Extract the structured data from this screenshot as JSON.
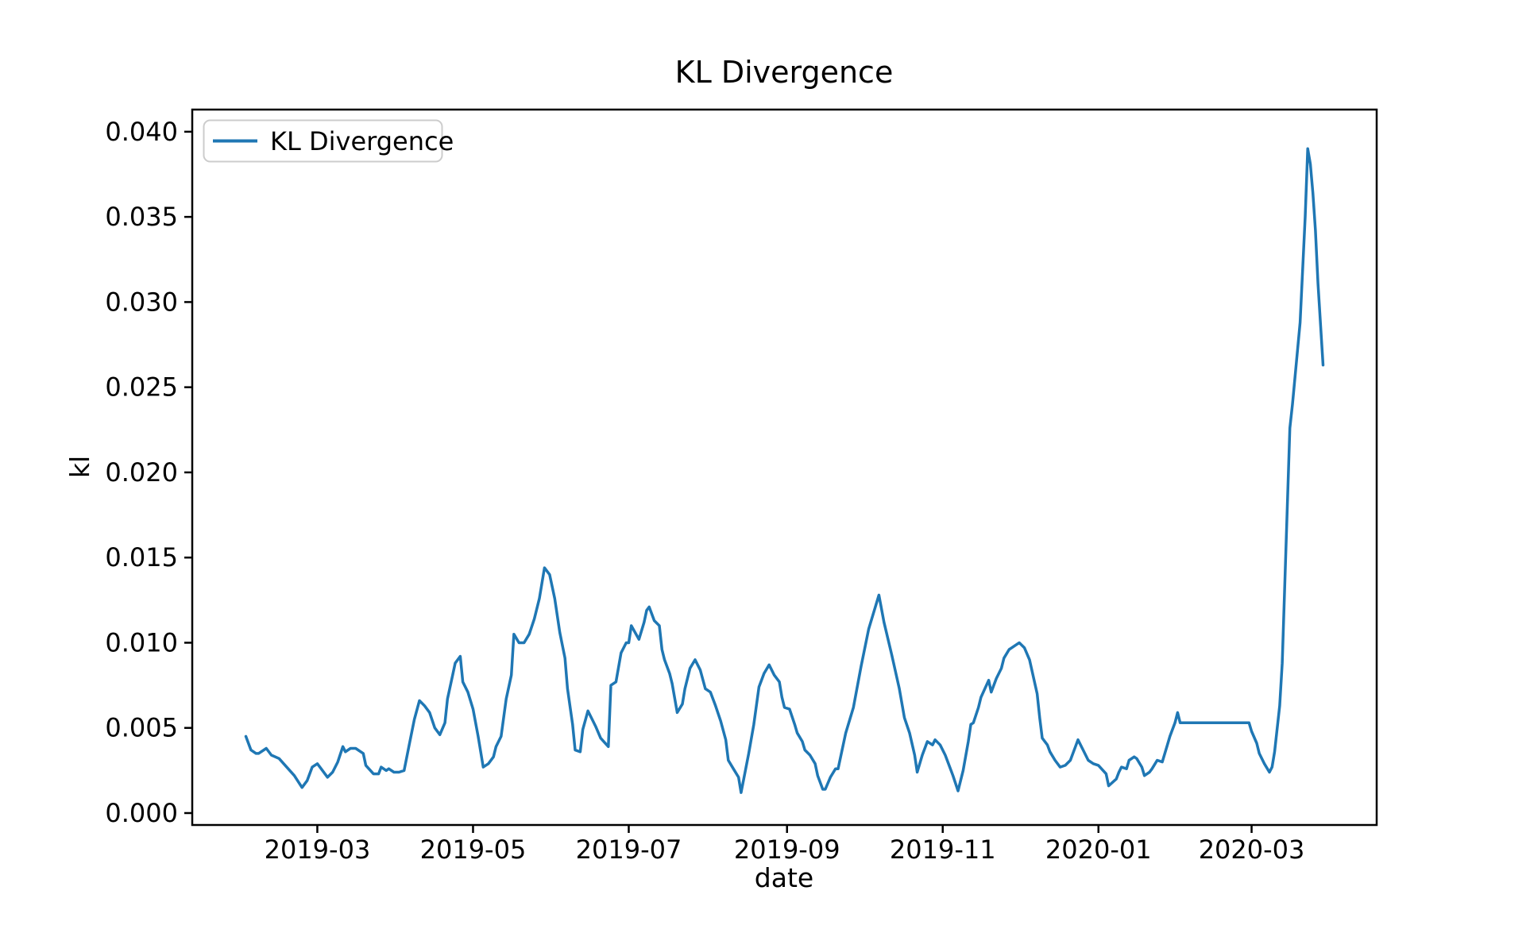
{
  "figure": {
    "background": "#ffffff"
  },
  "chart_data": {
    "type": "line",
    "title": "KL Divergence",
    "xlabel": "date",
    "ylabel": "kl",
    "legend": {
      "position": "upper left",
      "entries": [
        "KL Divergence"
      ]
    },
    "line_color": "#1f77b4",
    "axis_color": "#000000",
    "legend_border_color": "#cccccc",
    "grid": false,
    "x_tick_labels": [
      "2019-03",
      "2019-05",
      "2019-07",
      "2019-09",
      "2019-11",
      "2020-01",
      "2020-03"
    ],
    "y_tick_labels": [
      "0.000",
      "0.005",
      "0.010",
      "0.015",
      "0.020",
      "0.025",
      "0.030",
      "0.035",
      "0.040"
    ],
    "xlim": [
      "2019-01-11",
      "2020-04-19"
    ],
    "ylim": [
      -0.0007,
      0.0413
    ],
    "series": [
      {
        "name": "KL Divergence",
        "points": [
          [
            "2019-02-01",
            0.0045
          ],
          [
            "2019-02-03",
            0.0037
          ],
          [
            "2019-02-05",
            0.0035
          ],
          [
            "2019-02-06",
            0.0035
          ],
          [
            "2019-02-09",
            0.0038
          ],
          [
            "2019-02-11",
            0.0034
          ],
          [
            "2019-02-14",
            0.0032
          ],
          [
            "2019-02-17",
            0.0027
          ],
          [
            "2019-02-20",
            0.0022
          ],
          [
            "2019-02-23",
            0.0015
          ],
          [
            "2019-02-25",
            0.0019
          ],
          [
            "2019-02-27",
            0.0027
          ],
          [
            "2019-03-01",
            0.0029
          ],
          [
            "2019-03-02",
            0.0027
          ],
          [
            "2019-03-05",
            0.0021
          ],
          [
            "2019-03-07",
            0.0024
          ],
          [
            "2019-03-09",
            0.003
          ],
          [
            "2019-03-11",
            0.0039
          ],
          [
            "2019-03-12",
            0.0036
          ],
          [
            "2019-03-14",
            0.0038
          ],
          [
            "2019-03-16",
            0.0038
          ],
          [
            "2019-03-19",
            0.0035
          ],
          [
            "2019-03-20",
            0.0028
          ],
          [
            "2019-03-23",
            0.0023
          ],
          [
            "2019-03-25",
            0.0023
          ],
          [
            "2019-03-26",
            0.0027
          ],
          [
            "2019-03-28",
            0.0025
          ],
          [
            "2019-03-29",
            0.0026
          ],
          [
            "2019-03-31",
            0.0024
          ],
          [
            "2019-04-02",
            0.0024
          ],
          [
            "2019-04-04",
            0.0025
          ],
          [
            "2019-04-06",
            0.004
          ],
          [
            "2019-04-08",
            0.0055
          ],
          [
            "2019-04-10",
            0.0066
          ],
          [
            "2019-04-12",
            0.0063
          ],
          [
            "2019-04-14",
            0.0059
          ],
          [
            "2019-04-16",
            0.005
          ],
          [
            "2019-04-18",
            0.0046
          ],
          [
            "2019-04-20",
            0.0053
          ],
          [
            "2019-04-21",
            0.0067
          ],
          [
            "2019-04-23",
            0.0081
          ],
          [
            "2019-04-24",
            0.0088
          ],
          [
            "2019-04-26",
            0.0092
          ],
          [
            "2019-04-27",
            0.0077
          ],
          [
            "2019-04-29",
            0.0071
          ],
          [
            "2019-05-01",
            0.0061
          ],
          [
            "2019-05-03",
            0.0045
          ],
          [
            "2019-05-05",
            0.0027
          ],
          [
            "2019-05-07",
            0.0029
          ],
          [
            "2019-05-09",
            0.0033
          ],
          [
            "2019-05-10",
            0.0039
          ],
          [
            "2019-05-12",
            0.0045
          ],
          [
            "2019-05-14",
            0.0067
          ],
          [
            "2019-05-16",
            0.0081
          ],
          [
            "2019-05-17",
            0.0105
          ],
          [
            "2019-05-19",
            0.01
          ],
          [
            "2019-05-21",
            0.01
          ],
          [
            "2019-05-23",
            0.0105
          ],
          [
            "2019-05-25",
            0.0114
          ],
          [
            "2019-05-27",
            0.0126
          ],
          [
            "2019-05-29",
            0.0144
          ],
          [
            "2019-05-31",
            0.014
          ],
          [
            "2019-06-02",
            0.0126
          ],
          [
            "2019-06-04",
            0.0106
          ],
          [
            "2019-06-06",
            0.0091
          ],
          [
            "2019-06-07",
            0.0073
          ],
          [
            "2019-06-09",
            0.0052
          ],
          [
            "2019-06-10",
            0.0037
          ],
          [
            "2019-06-12",
            0.0036
          ],
          [
            "2019-06-13",
            0.0049
          ],
          [
            "2019-06-15",
            0.006
          ],
          [
            "2019-06-17",
            0.0054
          ],
          [
            "2019-06-18",
            0.0051
          ],
          [
            "2019-06-20",
            0.0044
          ],
          [
            "2019-06-23",
            0.0039
          ],
          [
            "2019-06-24",
            0.0075
          ],
          [
            "2019-06-26",
            0.0077
          ],
          [
            "2019-06-28",
            0.0094
          ],
          [
            "2019-06-30",
            0.01
          ],
          [
            "2019-07-01",
            0.01
          ],
          [
            "2019-07-02",
            0.011
          ],
          [
            "2019-07-05",
            0.0102
          ],
          [
            "2019-07-07",
            0.0112
          ],
          [
            "2019-07-08",
            0.0119
          ],
          [
            "2019-07-09",
            0.0121
          ],
          [
            "2019-07-11",
            0.0113
          ],
          [
            "2019-07-13",
            0.011
          ],
          [
            "2019-07-14",
            0.0096
          ],
          [
            "2019-07-15",
            0.009
          ],
          [
            "2019-07-17",
            0.0082
          ],
          [
            "2019-07-18",
            0.0076
          ],
          [
            "2019-07-20",
            0.0059
          ],
          [
            "2019-07-22",
            0.0064
          ],
          [
            "2019-07-23",
            0.0073
          ],
          [
            "2019-07-25",
            0.0085
          ],
          [
            "2019-07-27",
            0.009
          ],
          [
            "2019-07-29",
            0.0084
          ],
          [
            "2019-07-31",
            0.0073
          ],
          [
            "2019-08-02",
            0.0071
          ],
          [
            "2019-08-04",
            0.0063
          ],
          [
            "2019-08-06",
            0.0054
          ],
          [
            "2019-08-08",
            0.0043
          ],
          [
            "2019-08-09",
            0.0031
          ],
          [
            "2019-08-11",
            0.0026
          ],
          [
            "2019-08-13",
            0.0021
          ],
          [
            "2019-08-14",
            0.0012
          ],
          [
            "2019-08-17",
            0.0035
          ],
          [
            "2019-08-19",
            0.0052
          ],
          [
            "2019-08-21",
            0.0074
          ],
          [
            "2019-08-23",
            0.0082
          ],
          [
            "2019-08-25",
            0.0087
          ],
          [
            "2019-08-27",
            0.0081
          ],
          [
            "2019-08-29",
            0.0077
          ],
          [
            "2019-08-30",
            0.0068
          ],
          [
            "2019-08-31",
            0.0062
          ],
          [
            "2019-09-02",
            0.0061
          ],
          [
            "2019-09-04",
            0.0052
          ],
          [
            "2019-09-05",
            0.0047
          ],
          [
            "2019-09-07",
            0.0042
          ],
          [
            "2019-09-08",
            0.0037
          ],
          [
            "2019-09-10",
            0.0034
          ],
          [
            "2019-09-12",
            0.0029
          ],
          [
            "2019-09-13",
            0.0022
          ],
          [
            "2019-09-15",
            0.0014
          ],
          [
            "2019-09-16",
            0.0014
          ],
          [
            "2019-09-18",
            0.0021
          ],
          [
            "2019-09-20",
            0.0026
          ],
          [
            "2019-09-21",
            0.0026
          ],
          [
            "2019-09-24",
            0.0047
          ],
          [
            "2019-09-27",
            0.0062
          ],
          [
            "2019-09-30",
            0.0086
          ],
          [
            "2019-10-03",
            0.0108
          ],
          [
            "2019-10-07",
            0.0128
          ],
          [
            "2019-10-09",
            0.0112
          ],
          [
            "2019-10-12",
            0.0093
          ],
          [
            "2019-10-15",
            0.0073
          ],
          [
            "2019-10-17",
            0.0056
          ],
          [
            "2019-10-19",
            0.0047
          ],
          [
            "2019-10-21",
            0.0034
          ],
          [
            "2019-10-22",
            0.0024
          ],
          [
            "2019-10-24",
            0.0034
          ],
          [
            "2019-10-26",
            0.0042
          ],
          [
            "2019-10-28",
            0.004
          ],
          [
            "2019-10-29",
            0.0043
          ],
          [
            "2019-10-31",
            0.004
          ],
          [
            "2019-11-02",
            0.0034
          ],
          [
            "2019-11-04",
            0.0026
          ],
          [
            "2019-11-05",
            0.0022
          ],
          [
            "2019-11-07",
            0.0013
          ],
          [
            "2019-11-09",
            0.0025
          ],
          [
            "2019-11-11",
            0.0042
          ],
          [
            "2019-11-12",
            0.0052
          ],
          [
            "2019-11-13",
            0.0053
          ],
          [
            "2019-11-15",
            0.0062
          ],
          [
            "2019-11-16",
            0.0068
          ],
          [
            "2019-11-19",
            0.0078
          ],
          [
            "2019-11-20",
            0.0071
          ],
          [
            "2019-11-22",
            0.0079
          ],
          [
            "2019-11-24",
            0.0085
          ],
          [
            "2019-11-25",
            0.0091
          ],
          [
            "2019-11-27",
            0.0096
          ],
          [
            "2019-11-30",
            0.0099
          ],
          [
            "2019-12-01",
            0.01
          ],
          [
            "2019-12-03",
            0.0097
          ],
          [
            "2019-12-05",
            0.009
          ],
          [
            "2019-12-08",
            0.007
          ],
          [
            "2019-12-09",
            0.0056
          ],
          [
            "2019-12-10",
            0.0044
          ],
          [
            "2019-12-12",
            0.004
          ],
          [
            "2019-12-13",
            0.0036
          ],
          [
            "2019-12-15",
            0.0031
          ],
          [
            "2019-12-17",
            0.0027
          ],
          [
            "2019-12-19",
            0.0028
          ],
          [
            "2019-12-21",
            0.0031
          ],
          [
            "2019-12-23",
            0.0039
          ],
          [
            "2019-12-24",
            0.0043
          ],
          [
            "2019-12-26",
            0.0037
          ],
          [
            "2019-12-28",
            0.0031
          ],
          [
            "2019-12-30",
            0.0029
          ],
          [
            "2020-01-01",
            0.0028
          ],
          [
            "2020-01-04",
            0.0023
          ],
          [
            "2020-01-05",
            0.0016
          ],
          [
            "2020-01-08",
            0.002
          ],
          [
            "2020-01-09",
            0.0024
          ],
          [
            "2020-01-10",
            0.0027
          ],
          [
            "2020-01-12",
            0.0026
          ],
          [
            "2020-01-13",
            0.0031
          ],
          [
            "2020-01-15",
            0.0033
          ],
          [
            "2020-01-16",
            0.0032
          ],
          [
            "2020-01-18",
            0.0027
          ],
          [
            "2020-01-19",
            0.0022
          ],
          [
            "2020-01-21",
            0.0024
          ],
          [
            "2020-01-22",
            0.0026
          ],
          [
            "2020-01-24",
            0.0031
          ],
          [
            "2020-01-26",
            0.003
          ],
          [
            "2020-01-28",
            0.004
          ],
          [
            "2020-01-29",
            0.0045
          ],
          [
            "2020-01-31",
            0.0053
          ],
          [
            "2020-02-01",
            0.0059
          ],
          [
            "2020-02-02",
            0.0053
          ],
          [
            "2020-02-06",
            0.0053
          ],
          [
            "2020-02-10",
            0.0053
          ],
          [
            "2020-02-14",
            0.0053
          ],
          [
            "2020-02-18",
            0.0053
          ],
          [
            "2020-02-22",
            0.0053
          ],
          [
            "2020-02-26",
            0.0053
          ],
          [
            "2020-02-29",
            0.0053
          ],
          [
            "2020-03-01",
            0.0048
          ],
          [
            "2020-03-03",
            0.0041
          ],
          [
            "2020-03-04",
            0.0035
          ],
          [
            "2020-03-06",
            0.0029
          ],
          [
            "2020-03-08",
            0.0024
          ],
          [
            "2020-03-09",
            0.0027
          ],
          [
            "2020-03-10",
            0.0036
          ],
          [
            "2020-03-12",
            0.0063
          ],
          [
            "2020-03-13",
            0.0088
          ],
          [
            "2020-03-14",
            0.0134
          ],
          [
            "2020-03-15",
            0.018
          ],
          [
            "2020-03-16",
            0.0226
          ],
          [
            "2020-03-17",
            0.024
          ],
          [
            "2020-03-18",
            0.0256
          ],
          [
            "2020-03-19",
            0.0272
          ],
          [
            "2020-03-20",
            0.0288
          ],
          [
            "2020-03-21",
            0.0319
          ],
          [
            "2020-03-22",
            0.035
          ],
          [
            "2020-03-23",
            0.039
          ],
          [
            "2020-03-24",
            0.0381
          ],
          [
            "2020-03-25",
            0.0364
          ],
          [
            "2020-03-26",
            0.0342
          ],
          [
            "2020-03-27",
            0.0311
          ],
          [
            "2020-03-29",
            0.0263
          ]
        ]
      }
    ]
  }
}
